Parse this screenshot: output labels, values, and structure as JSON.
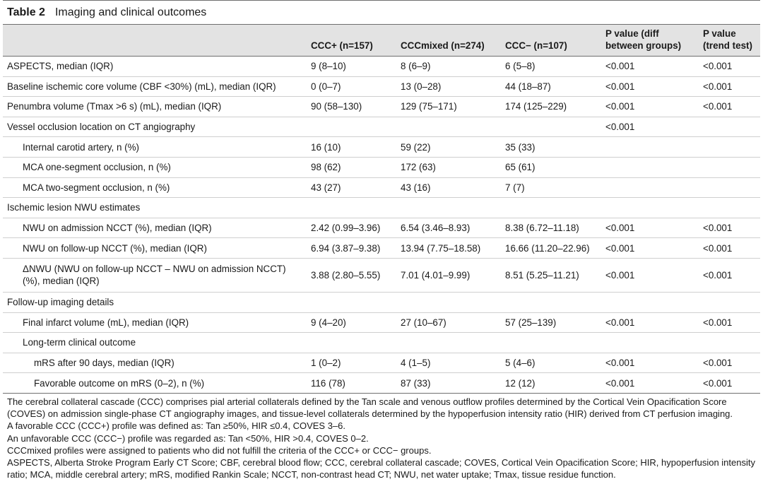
{
  "table_number": "Table 2",
  "table_title": "Imaging and clinical outcomes",
  "columns": [
    "",
    "CCC+ (n=157)",
    "CCCmixed (n=274)",
    "CCC− (n=107)",
    "P value (diff between groups)",
    "P value (trend test)"
  ],
  "rows": [
    {
      "label": "ASPECTS, median (IQR)",
      "indent": 0,
      "ccc_pos": "9 (8–10)",
      "ccc_mixed": "8 (6–9)",
      "ccc_neg": "6 (5–8)",
      "p_diff": "<0.001",
      "p_trend": "<0.001"
    },
    {
      "label": "Baseline ischemic core volume (CBF <30%) (mL), median (IQR)",
      "indent": 0,
      "ccc_pos": "0 (0–7)",
      "ccc_mixed": "13 (0–28)",
      "ccc_neg": "44 (18–87)",
      "p_diff": "<0.001",
      "p_trend": "<0.001"
    },
    {
      "label": "Penumbra volume (Tmax >6 s) (mL), median (IQR)",
      "indent": 0,
      "ccc_pos": "90 (58–130)",
      "ccc_mixed": "129 (75–171)",
      "ccc_neg": "174 (125–229)",
      "p_diff": "<0.001",
      "p_trend": "<0.001"
    },
    {
      "label": "Vessel occlusion location on CT angiography",
      "indent": 0,
      "ccc_pos": "",
      "ccc_mixed": "",
      "ccc_neg": "",
      "p_diff": "<0.001",
      "p_trend": ""
    },
    {
      "label": "Internal carotid artery, n (%)",
      "indent": 1,
      "ccc_pos": "16 (10)",
      "ccc_mixed": "59 (22)",
      "ccc_neg": "35 (33)",
      "p_diff": "",
      "p_trend": ""
    },
    {
      "label": "MCA one-segment occlusion, n (%)",
      "indent": 1,
      "ccc_pos": "98 (62)",
      "ccc_mixed": "172 (63)",
      "ccc_neg": "65 (61)",
      "p_diff": "",
      "p_trend": ""
    },
    {
      "label": "MCA two-segment occlusion, n (%)",
      "indent": 1,
      "ccc_pos": "43 (27)",
      "ccc_mixed": "43 (16)",
      "ccc_neg": "7 (7)",
      "p_diff": "",
      "p_trend": ""
    },
    {
      "label": "Ischemic lesion NWU estimates",
      "indent": 0,
      "ccc_pos": "",
      "ccc_mixed": "",
      "ccc_neg": "",
      "p_diff": "",
      "p_trend": ""
    },
    {
      "label": "NWU on admission NCCT (%), median (IQR)",
      "indent": 1,
      "ccc_pos": "2.42 (0.99–3.96)",
      "ccc_mixed": "6.54 (3.46–8.93)",
      "ccc_neg": "8.38 (6.72–11.18)",
      "p_diff": "<0.001",
      "p_trend": "<0.001"
    },
    {
      "label": "NWU on follow-up NCCT (%), median (IQR)",
      "indent": 1,
      "ccc_pos": "6.94 (3.87–9.38)",
      "ccc_mixed": "13.94 (7.75–18.58)",
      "ccc_neg": "16.66 (11.20–22.96)",
      "p_diff": "<0.001",
      "p_trend": "<0.001"
    },
    {
      "label": "ΔNWU (NWU on follow-up NCCT – NWU on admission NCCT) (%), median (IQR)",
      "indent": 1,
      "tall": true,
      "ccc_pos": "3.88 (2.80–5.55)",
      "ccc_mixed": "7.01 (4.01–9.99)",
      "ccc_neg": "8.51 (5.25–11.21)",
      "p_diff": "<0.001",
      "p_trend": "<0.001"
    },
    {
      "label": "Follow-up imaging details",
      "indent": 0,
      "ccc_pos": "",
      "ccc_mixed": "",
      "ccc_neg": "",
      "p_diff": "",
      "p_trend": ""
    },
    {
      "label": "Final infarct volume (mL), median (IQR)",
      "indent": 1,
      "ccc_pos": "9 (4–20)",
      "ccc_mixed": "27 (10–67)",
      "ccc_neg": "57 (25–139)",
      "p_diff": "<0.001",
      "p_trend": "<0.001"
    },
    {
      "label": "Long-term clinical outcome",
      "indent": 1,
      "ccc_pos": "",
      "ccc_mixed": "",
      "ccc_neg": "",
      "p_diff": "",
      "p_trend": ""
    },
    {
      "label": "mRS after 90 days, median (IQR)",
      "indent": 2,
      "ccc_pos": "1 (0–2)",
      "ccc_mixed": "4 (1–5)",
      "ccc_neg": "5 (4–6)",
      "p_diff": "<0.001",
      "p_trend": "<0.001"
    },
    {
      "label": "Favorable outcome on mRS (0–2), n (%)",
      "indent": 2,
      "ccc_pos": "116 (78)",
      "ccc_mixed": "87 (33)",
      "ccc_neg": "12 (12)",
      "p_diff": "<0.001",
      "p_trend": "<0.001"
    }
  ],
  "footnotes": [
    "The cerebral collateral cascade (CCC) comprises pial arterial collaterals defined by the Tan scale and venous outflow profiles determined by the Cortical Vein Opacification Score (COVES) on admission single-phase CT angiography images, and tissue-level collaterals determined by the hypoperfusion intensity ratio (HIR) derived from CT perfusion imaging.",
    "A favorable CCC (CCC+) profile was defined as: Tan ≥50%, HIR ≤0.4, COVES 3–6.",
    "An unfavorable CCC (CCC−) profile was regarded as: Tan <50%, HIR >0.4, COVES 0–2.",
    "CCCmixed profiles were assigned to patients who did not fulfill the criteria of the CCC+ or CCC− groups.",
    "ASPECTS, Alberta Stroke Program Early CT Score; CBF, cerebral blood flow; CCC, cerebral collateral cascade; COVES, Cortical Vein Opacification Score; HIR, hypoperfusion intensity ratio; MCA, middle cerebral artery; mRS, modified Rankin Scale; NCCT, non-contrast head CT; NWU, net water uptake; Tmax, tissue residue function."
  ]
}
